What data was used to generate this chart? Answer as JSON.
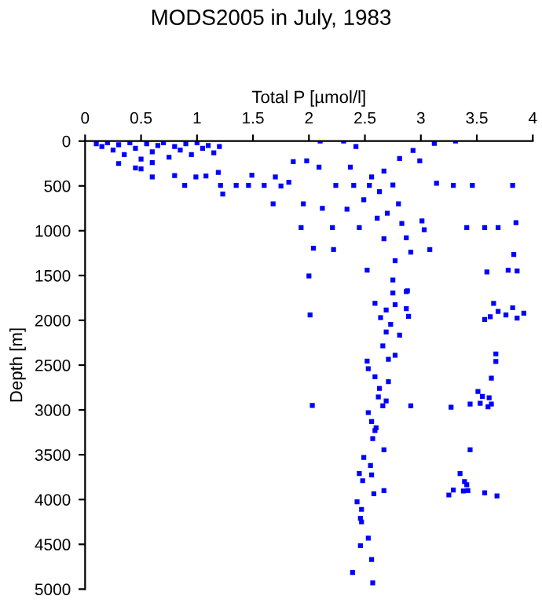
{
  "chart_data": {
    "type": "scatter",
    "title": "MODS2005 in July, 1983",
    "xlabel": "Total P [µmol/l]",
    "ylabel": "Depth [m]",
    "xlim": [
      0,
      4
    ],
    "xticks": [
      0,
      0.5,
      1,
      1.5,
      2,
      2.5,
      3,
      3.5,
      4
    ],
    "ylim": [
      5000,
      0
    ],
    "yticks": [
      0,
      500,
      1000,
      1500,
      2000,
      2500,
      3000,
      3500,
      4000,
      4500,
      5000
    ],
    "marker": "square",
    "color": "#0000ff",
    "x": [
      0.1,
      0.15,
      0.2,
      0.25,
      0.3,
      0.35,
      0.4,
      0.45,
      0.5,
      0.55,
      0.6,
      0.65,
      0.7,
      0.75,
      0.8,
      0.85,
      0.9,
      0.95,
      1.0,
      1.05,
      1.1,
      1.15,
      1.2,
      0.3,
      0.45,
      0.5,
      0.6,
      0.6,
      0.8,
      0.89,
      0.99,
      1.08,
      1.19,
      1.21,
      1.23,
      1.35,
      1.46,
      1.49,
      1.6,
      1.7,
      1.68,
      1.75,
      1.82,
      1.86,
      1.93,
      1.95,
      1.98,
      2.0,
      2.04,
      2.1,
      2.09,
      2.12,
      2.21,
      2.22,
      2.24,
      2.31,
      2.34,
      2.37,
      2.4,
      2.42,
      2.45,
      2.49,
      2.52,
      2.54,
      2.56,
      2.61,
      2.63,
      2.67,
      2.67,
      2.7,
      2.75,
      2.77,
      2.8,
      2.81,
      2.83,
      2.87,
      2.88,
      2.91,
      2.93,
      2.99,
      3.01,
      3.03,
      3.08,
      3.12,
      3.14,
      3.29,
      3.31,
      3.41,
      3.46,
      3.57,
      3.59,
      3.69,
      3.78,
      3.82,
      3.83,
      3.85,
      3.86,
      2.75,
      2.87,
      2.01,
      2.59,
      2.64,
      2.69,
      2.75,
      2.77,
      2.81,
      2.87,
      2.89,
      2.69,
      2.73,
      2.66,
      2.52,
      2.53,
      2.71,
      2.77,
      2.59,
      2.71,
      2.63,
      2.62,
      2.69,
      2.66,
      2.91,
      2.03,
      2.53,
      2.56,
      2.59,
      2.6,
      2.57,
      2.67,
      2.49,
      2.55,
      2.45,
      2.56,
      2.48,
      2.67,
      2.58,
      2.43,
      2.47,
      2.46,
      2.47,
      2.53,
      2.46,
      2.56,
      2.39,
      2.57,
      3.57,
      3.62,
      3.65,
      3.69,
      3.76,
      3.82,
      3.86,
      3.92,
      3.67,
      3.67,
      3.63,
      3.51,
      3.55,
      3.61,
      3.27,
      3.44,
      3.53,
      3.6,
      3.63,
      3.44,
      3.35,
      3.39,
      3.41,
      3.29,
      3.25,
      3.38,
      3.42,
      3.57,
      3.68
    ],
    "values": [
      30,
      60,
      20,
      100,
      40,
      150,
      20,
      80,
      200,
      30,
      120,
      50,
      20,
      180,
      60,
      100,
      30,
      150,
      20,
      80,
      50,
      130,
      60,
      250,
      300,
      310,
      240,
      400,
      385,
      495,
      400,
      390,
      350,
      495,
      590,
      495,
      495,
      380,
      495,
      400,
      700,
      500,
      460,
      230,
      965,
      700,
      220,
      1505,
      1195,
      0,
      290,
      750,
      965,
      1210,
      495,
      0,
      760,
      290,
      495,
      60,
      965,
      655,
      1440,
      495,
      400,
      860,
      565,
      335,
      1090,
      805,
      490,
      1335,
      700,
      195,
      920,
      1080,
      1670,
      1240,
      105,
      220,
      890,
      990,
      1210,
      25,
      470,
      495,
      0,
      965,
      495,
      965,
      1460,
      965,
      1440,
      495,
      1265,
      910,
      1450,
      1550,
      1680,
      1940,
      1810,
      1970,
      1885,
      1695,
      1825,
      2165,
      1870,
      1955,
      2130,
      2045,
      2285,
      2455,
      2540,
      2435,
      2390,
      2630,
      2685,
      2760,
      2855,
      2900,
      2955,
      2955,
      2950,
      3030,
      3130,
      3230,
      3200,
      3320,
      3445,
      3530,
      3620,
      3710,
      3725,
      3790,
      3900,
      3935,
      4025,
      4110,
      4210,
      4250,
      4430,
      4515,
      4670,
      4815,
      4930,
      1990,
      1960,
      1810,
      1900,
      1940,
      1860,
      1975,
      1920,
      2375,
      2460,
      2645,
      2795,
      2850,
      2865,
      2970,
      2935,
      2925,
      2965,
      2935,
      3445,
      3710,
      3800,
      3835,
      3895,
      3950,
      3905,
      3900,
      3925,
      3960
    ]
  }
}
